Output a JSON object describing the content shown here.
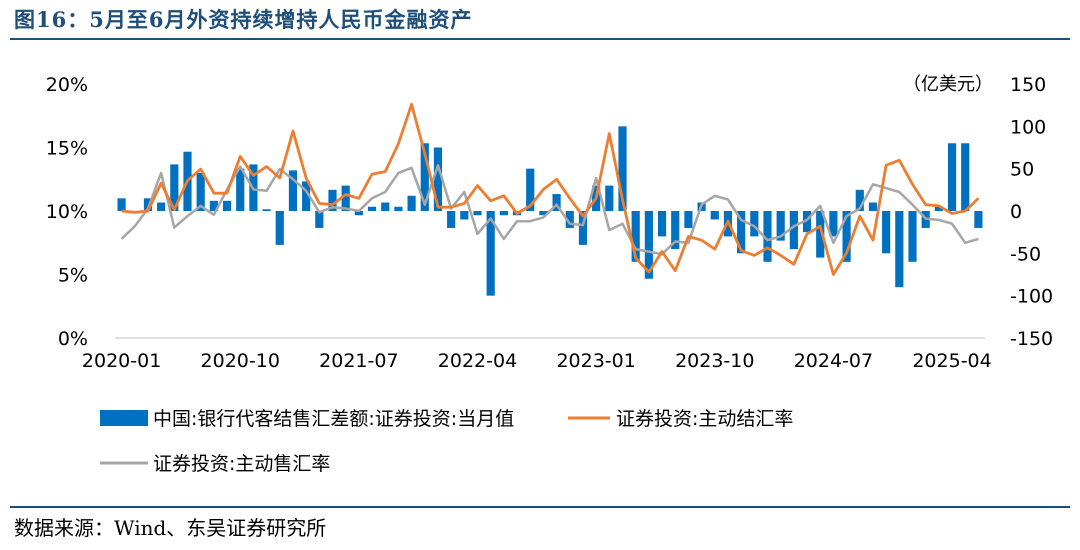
{
  "title": "图16：5月至6月外资持续增持人民币金融资产",
  "source": "数据来源：Wind、东吴证券研究所",
  "colors": {
    "bar": "#0070c0",
    "line_settle": "#ed7d31",
    "line_sale": "#a6a6a6",
    "rule": "#1f4e79"
  },
  "chart_data": {
    "type": "bar+line",
    "dates": [
      "2020-01",
      "2020-02",
      "2020-03",
      "2020-04",
      "2020-05",
      "2020-06",
      "2020-07",
      "2020-08",
      "2020-09",
      "2020-10",
      "2020-11",
      "2020-12",
      "2021-01",
      "2021-02",
      "2021-03",
      "2021-04",
      "2021-05",
      "2021-06",
      "2021-07",
      "2021-08",
      "2021-09",
      "2021-10",
      "2021-11",
      "2021-12",
      "2022-01",
      "2022-02",
      "2022-03",
      "2022-04",
      "2022-05",
      "2022-06",
      "2022-07",
      "2022-08",
      "2022-09",
      "2022-10",
      "2022-11",
      "2022-12",
      "2023-01",
      "2023-02",
      "2023-03",
      "2023-04",
      "2023-05",
      "2023-06",
      "2023-07",
      "2023-08",
      "2023-09",
      "2023-10",
      "2023-11",
      "2023-12",
      "2024-01",
      "2024-02",
      "2024-03",
      "2024-04",
      "2024-05",
      "2024-06",
      "2024-07",
      "2024-08",
      "2024-09",
      "2024-10",
      "2024-11",
      "2024-12",
      "2025-01",
      "2025-02",
      "2025-03",
      "2025-04",
      "2025-05",
      "2025-06"
    ],
    "x_tick_labels": [
      "2020-01",
      "2020-10",
      "2021-07",
      "2022-04",
      "2023-01",
      "2023-10",
      "2024-07",
      "2025-04"
    ],
    "left_axis": {
      "ticks": [
        "0%",
        "5%",
        "10%",
        "15%",
        "20%"
      ],
      "range": [
        0,
        20
      ]
    },
    "right_axis": {
      "unit": "（亿美元）",
      "ticks": [
        "-150",
        "-100",
        "-50",
        "0",
        "50",
        "100",
        "150"
      ],
      "range": [
        -150,
        150
      ]
    },
    "series": [
      {
        "name": "中国:银行代客结售汇差额:证券投资:当月值",
        "kind": "bar",
        "axis": "right",
        "values": [
          15,
          -3,
          15,
          10,
          55,
          70,
          45,
          12,
          12,
          50,
          55,
          2,
          -40,
          48,
          35,
          -20,
          25,
          30,
          -5,
          5,
          10,
          5,
          18,
          80,
          75,
          -20,
          -10,
          -5,
          -100,
          -5,
          -5,
          50,
          -5,
          20,
          -20,
          -40,
          30,
          30,
          100,
          -60,
          -80,
          -30,
          -45,
          -20,
          10,
          -10,
          -30,
          -50,
          -30,
          -60,
          -35,
          -45,
          -25,
          -55,
          -30,
          -60,
          25,
          10,
          -50,
          -90,
          -60,
          -20,
          5,
          80,
          80,
          -20
        ],
        "value_note": "bar values approximated"
      },
      {
        "name": "证券投资:主动结汇率",
        "kind": "line",
        "axis": "left",
        "values": [
          10.0,
          9.9,
          10.0,
          12.2,
          10.1,
          12.4,
          13.3,
          11.4,
          11.4,
          14.3,
          12.8,
          13.5,
          12.6,
          16.3,
          12.6,
          10.6,
          10.5,
          11.3,
          11.0,
          12.9,
          13.1,
          15.3,
          18.4,
          14.5,
          10.3,
          10.3,
          10.6,
          12.0,
          10.8,
          11.2,
          9.8,
          10.4,
          11.7,
          12.5,
          11.0,
          9.6,
          11.0,
          16.1,
          10.9,
          6.3,
          5.2,
          6.8,
          5.3,
          8.0,
          7.7,
          7.0,
          9.2,
          6.9,
          6.5,
          7.1,
          6.5,
          5.8,
          8.2,
          8.8,
          5.0,
          6.7,
          9.6,
          7.7,
          13.6,
          14.0,
          12.1,
          10.5,
          10.4,
          9.8,
          10.0,
          11.0
        ],
        "value_note": "line values approximated"
      },
      {
        "name": "证券投资:主动售汇率",
        "kind": "line",
        "axis": "left",
        "values": [
          7.8,
          8.8,
          10.2,
          13.0,
          8.7,
          9.6,
          10.4,
          9.7,
          11.7,
          13.5,
          11.7,
          11.6,
          13.3,
          12.5,
          11.6,
          9.9,
          10.3,
          10.2,
          10.0,
          11.0,
          11.5,
          13.0,
          13.4,
          10.5,
          13.6,
          10.2,
          11.5,
          8.2,
          9.4,
          7.8,
          9.2,
          9.2,
          9.5,
          10.5,
          9.0,
          8.9,
          12.6,
          8.5,
          9.0,
          7.0,
          6.8,
          6.6,
          7.6,
          7.5,
          10.5,
          11.2,
          10.9,
          9.3,
          8.8,
          7.7,
          8.0,
          8.8,
          9.3,
          10.4,
          7.5,
          9.6,
          10.2,
          12.1,
          11.8,
          11.5,
          10.5,
          9.4,
          9.3,
          9.0,
          7.5,
          7.8
        ],
        "value_note": "line values approximated"
      }
    ],
    "legend": [
      "中国:银行代客结售汇差额:证券投资:当月值",
      "证券投资:主动结汇率",
      "证券投资:主动售汇率"
    ],
    "legend_position": "bottom",
    "grid": false
  }
}
